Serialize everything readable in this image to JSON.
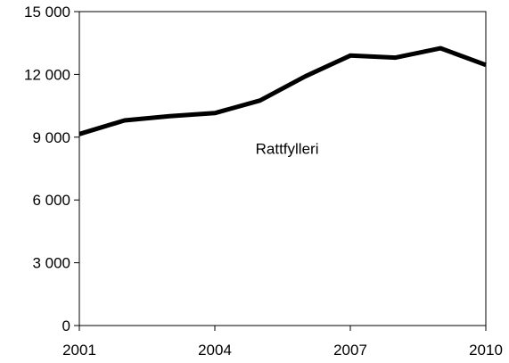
{
  "chart_data": {
    "type": "line",
    "title": "",
    "xlabel": "",
    "ylabel": "",
    "x": [
      2001,
      2002,
      2003,
      2004,
      2005,
      2006,
      2007,
      2008,
      2009,
      2010
    ],
    "x_ticks": [
      2001,
      2004,
      2007,
      2010
    ],
    "x_tick_labels": [
      "2001",
      "2004",
      "2007",
      "2010"
    ],
    "xlim": [
      2001,
      2010
    ],
    "ylim": [
      0,
      15000
    ],
    "y_ticks": [
      0,
      3000,
      6000,
      9000,
      12000,
      15000
    ],
    "y_tick_labels": [
      "0",
      "3 000",
      "6 000",
      "9 000",
      "12 000",
      "15 000"
    ],
    "grid": false,
    "series": [
      {
        "name": "Rattfylleri",
        "color": "#000000",
        "values": [
          9150,
          9800,
          10000,
          10150,
          10750,
          11900,
          12900,
          12800,
          13250,
          12450
        ]
      }
    ],
    "annotation": {
      "text": "Rattfylleri",
      "x": 2005.6,
      "y": 8200
    }
  }
}
